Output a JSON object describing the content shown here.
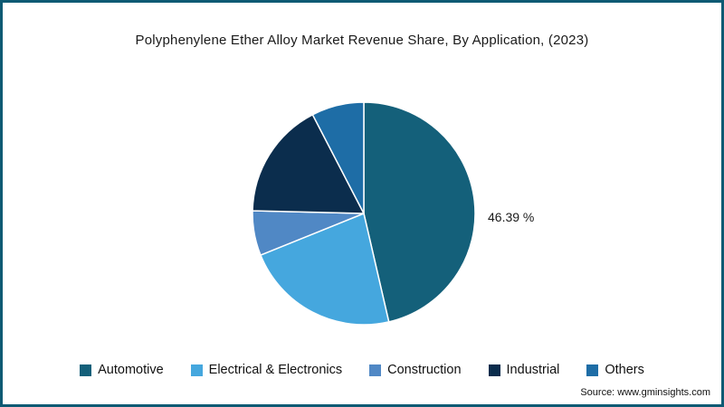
{
  "frame": {
    "border_color": "#0d5a73",
    "background": "#ffffff"
  },
  "source": "Source: www.gminsights.com",
  "chart_data": {
    "type": "pie",
    "title": "Polyphenylene Ether Alloy Market Revenue Share, By Application, (2023)",
    "categories": [
      "Automotive",
      "Electrical & Electronics",
      "Construction",
      "Industrial",
      "Others"
    ],
    "values": [
      46.39,
      22.5,
      6.5,
      17.0,
      7.61
    ],
    "colors": [
      "#14607a",
      "#45a7de",
      "#5088c5",
      "#0b2d4d",
      "#1e6da6"
    ],
    "start_angle_deg": -90,
    "direction": "clockwise",
    "slice_stroke": "#ffffff",
    "legend_position": "bottom",
    "data_label": {
      "slice": "Automotive",
      "text": "46.39 %"
    }
  }
}
